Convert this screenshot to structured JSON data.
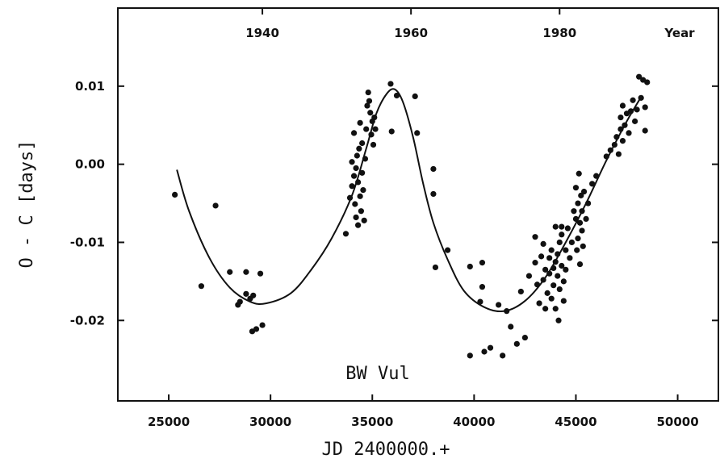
{
  "chart_data": {
    "type": "scatter",
    "xlabel": "JD 2400000.+",
    "ylabel": "O - C  [days]",
    "top_axis_label": "Year",
    "annotation": "BW Vul",
    "xlim": [
      22500,
      52000
    ],
    "ylim": [
      -0.0303,
      0.02
    ],
    "x_ticks": [
      {
        "value": 25000,
        "label": "25000"
      },
      {
        "value": 30000,
        "label": "30000"
      },
      {
        "value": 35000,
        "label": "35000"
      },
      {
        "value": 40000,
        "label": "40000"
      },
      {
        "value": 45000,
        "label": "45000"
      },
      {
        "value": 50000,
        "label": "50000"
      }
    ],
    "y_ticks": [
      {
        "value": 0.01,
        "label": "0.01"
      },
      {
        "value": 0.0,
        "label": "0.00"
      },
      {
        "value": -0.01,
        "label": "-0.01"
      },
      {
        "value": -0.02,
        "label": "-0.02"
      }
    ],
    "top_ticks": [
      {
        "year": "1940",
        "jd": 29600
      },
      {
        "year": "1960",
        "jd": 36900
      },
      {
        "year": "1980",
        "jd": 44200
      }
    ],
    "grid": false,
    "series": [
      {
        "kind": "points",
        "points": [
          [
            25300,
            -0.0039
          ],
          [
            26600,
            -0.0156
          ],
          [
            27300,
            -0.0053
          ],
          [
            28000,
            -0.0138
          ],
          [
            28400,
            -0.018
          ],
          [
            28500,
            -0.0176
          ],
          [
            28800,
            -0.0138
          ],
          [
            28800,
            -0.0166
          ],
          [
            29000,
            -0.0172
          ],
          [
            29150,
            -0.0168
          ],
          [
            29100,
            -0.0214
          ],
          [
            29300,
            -0.0211
          ],
          [
            29500,
            -0.014
          ],
          [
            29600,
            -0.0206
          ],
          [
            33700,
            -0.0089
          ],
          [
            33900,
            -0.0043
          ],
          [
            34000,
            -0.0028
          ],
          [
            34000,
            0.0003
          ],
          [
            34100,
            -0.0015
          ],
          [
            34100,
            0.004
          ],
          [
            34150,
            -0.0051
          ],
          [
            34200,
            -0.0068
          ],
          [
            34200,
            -0.0005
          ],
          [
            34250,
            0.0011
          ],
          [
            34300,
            -0.0023
          ],
          [
            34300,
            -0.0078
          ],
          [
            34350,
            0.002
          ],
          [
            34400,
            -0.0041
          ],
          [
            34400,
            0.0053
          ],
          [
            34450,
            -0.006
          ],
          [
            34500,
            -0.0011
          ],
          [
            34500,
            0.0027
          ],
          [
            34550,
            -0.0033
          ],
          [
            34600,
            -0.0072
          ],
          [
            34650,
            0.0007
          ],
          [
            34700,
            0.0045
          ],
          [
            34750,
            0.0075
          ],
          [
            34800,
            0.0092
          ],
          [
            34850,
            0.0081
          ],
          [
            34900,
            0.0066
          ],
          [
            34950,
            0.0038
          ],
          [
            35000,
            0.0055
          ],
          [
            35050,
            0.0025
          ],
          [
            35100,
            0.006
          ],
          [
            35150,
            0.0045
          ],
          [
            35900,
            0.0103
          ],
          [
            35950,
            0.0042
          ],
          [
            36200,
            0.0088
          ],
          [
            37100,
            0.0087
          ],
          [
            37200,
            0.004
          ],
          [
            38000,
            -0.0006
          ],
          [
            38000,
            -0.0038
          ],
          [
            38100,
            -0.0132
          ],
          [
            38700,
            -0.011
          ],
          [
            39800,
            -0.0131
          ],
          [
            39800,
            -0.0245
          ],
          [
            40300,
            -0.0176
          ],
          [
            40400,
            -0.0126
          ],
          [
            40400,
            -0.0157
          ],
          [
            40500,
            -0.024
          ],
          [
            40800,
            -0.0235
          ],
          [
            41200,
            -0.018
          ],
          [
            41400,
            -0.0245
          ],
          [
            41600,
            -0.0188
          ],
          [
            41800,
            -0.0208
          ],
          [
            42100,
            -0.023
          ],
          [
            42300,
            -0.0163
          ],
          [
            42500,
            -0.0222
          ],
          [
            42700,
            -0.0143
          ],
          [
            43000,
            -0.0126
          ],
          [
            43000,
            -0.0093
          ],
          [
            43100,
            -0.0154
          ],
          [
            43200,
            -0.0178
          ],
          [
            43300,
            -0.0118
          ],
          [
            43400,
            -0.0102
          ],
          [
            43400,
            -0.0148
          ],
          [
            43500,
            -0.0135
          ],
          [
            43500,
            -0.0185
          ],
          [
            43600,
            -0.0165
          ],
          [
            43700,
            -0.012
          ],
          [
            43700,
            -0.014
          ],
          [
            43800,
            -0.011
          ],
          [
            43800,
            -0.0172
          ],
          [
            43900,
            -0.0133
          ],
          [
            43900,
            -0.0155
          ],
          [
            44000,
            -0.0125
          ],
          [
            44000,
            -0.008
          ],
          [
            44000,
            -0.0185
          ],
          [
            44100,
            -0.0143
          ],
          [
            44100,
            -0.0115
          ],
          [
            44150,
            -0.02
          ],
          [
            44200,
            -0.01
          ],
          [
            44200,
            -0.016
          ],
          [
            44300,
            -0.013
          ],
          [
            44300,
            -0.009
          ],
          [
            44300,
            -0.008
          ],
          [
            44400,
            -0.015
          ],
          [
            44400,
            -0.0175
          ],
          [
            44500,
            -0.011
          ],
          [
            44500,
            -0.0135
          ],
          [
            44600,
            -0.0082
          ],
          [
            44700,
            -0.012
          ],
          [
            44800,
            -0.01
          ],
          [
            44900,
            -0.006
          ],
          [
            45000,
            -0.007
          ],
          [
            45000,
            -0.003
          ],
          [
            45050,
            -0.011
          ],
          [
            45100,
            -0.005
          ],
          [
            45100,
            -0.0095
          ],
          [
            45150,
            -0.0012
          ],
          [
            45200,
            -0.0075
          ],
          [
            45200,
            -0.0128
          ],
          [
            45250,
            -0.004
          ],
          [
            45300,
            -0.0085
          ],
          [
            45300,
            -0.006
          ],
          [
            45350,
            -0.0105
          ],
          [
            45400,
            -0.0035
          ],
          [
            45500,
            -0.007
          ],
          [
            45600,
            -0.005
          ],
          [
            45800,
            -0.0025
          ],
          [
            46000,
            -0.0015
          ],
          [
            46500,
            0.001
          ],
          [
            46700,
            0.0018
          ],
          [
            46900,
            0.0025
          ],
          [
            47000,
            0.0035
          ],
          [
            47100,
            0.0013
          ],
          [
            47200,
            0.0045
          ],
          [
            47200,
            0.006
          ],
          [
            47300,
            0.003
          ],
          [
            47300,
            0.0075
          ],
          [
            47400,
            0.005
          ],
          [
            47500,
            0.0065
          ],
          [
            47600,
            0.004
          ],
          [
            47700,
            0.0068
          ],
          [
            47800,
            0.0082
          ],
          [
            47900,
            0.0055
          ],
          [
            48000,
            0.007
          ],
          [
            48100,
            0.0112
          ],
          [
            48200,
            0.0085
          ],
          [
            48300,
            0.0108
          ],
          [
            48400,
            0.0073
          ],
          [
            48400,
            0.0043
          ],
          [
            48500,
            0.0105
          ]
        ]
      },
      {
        "kind": "fitted_curve",
        "points": [
          [
            25400,
            -0.0007
          ],
          [
            26000,
            -0.006
          ],
          [
            27000,
            -0.012
          ],
          [
            28000,
            -0.0158
          ],
          [
            29000,
            -0.0176
          ],
          [
            29800,
            -0.0178
          ],
          [
            31000,
            -0.0165
          ],
          [
            32000,
            -0.0135
          ],
          [
            33000,
            -0.0095
          ],
          [
            34000,
            -0.004
          ],
          [
            34700,
            0.002
          ],
          [
            35200,
            0.0065
          ],
          [
            35700,
            0.009
          ],
          [
            36100,
            0.0096
          ],
          [
            36500,
            0.008
          ],
          [
            37000,
            0.0035
          ],
          [
            37500,
            -0.0025
          ],
          [
            38000,
            -0.0075
          ],
          [
            38700,
            -0.0122
          ],
          [
            39500,
            -0.0162
          ],
          [
            40500,
            -0.0183
          ],
          [
            41500,
            -0.0188
          ],
          [
            42500,
            -0.0175
          ],
          [
            43500,
            -0.0145
          ],
          [
            44500,
            -0.01
          ],
          [
            45500,
            -0.005
          ],
          [
            46500,
            0.0005
          ],
          [
            47500,
            0.0055
          ],
          [
            48200,
            0.0086
          ]
        ]
      }
    ]
  }
}
